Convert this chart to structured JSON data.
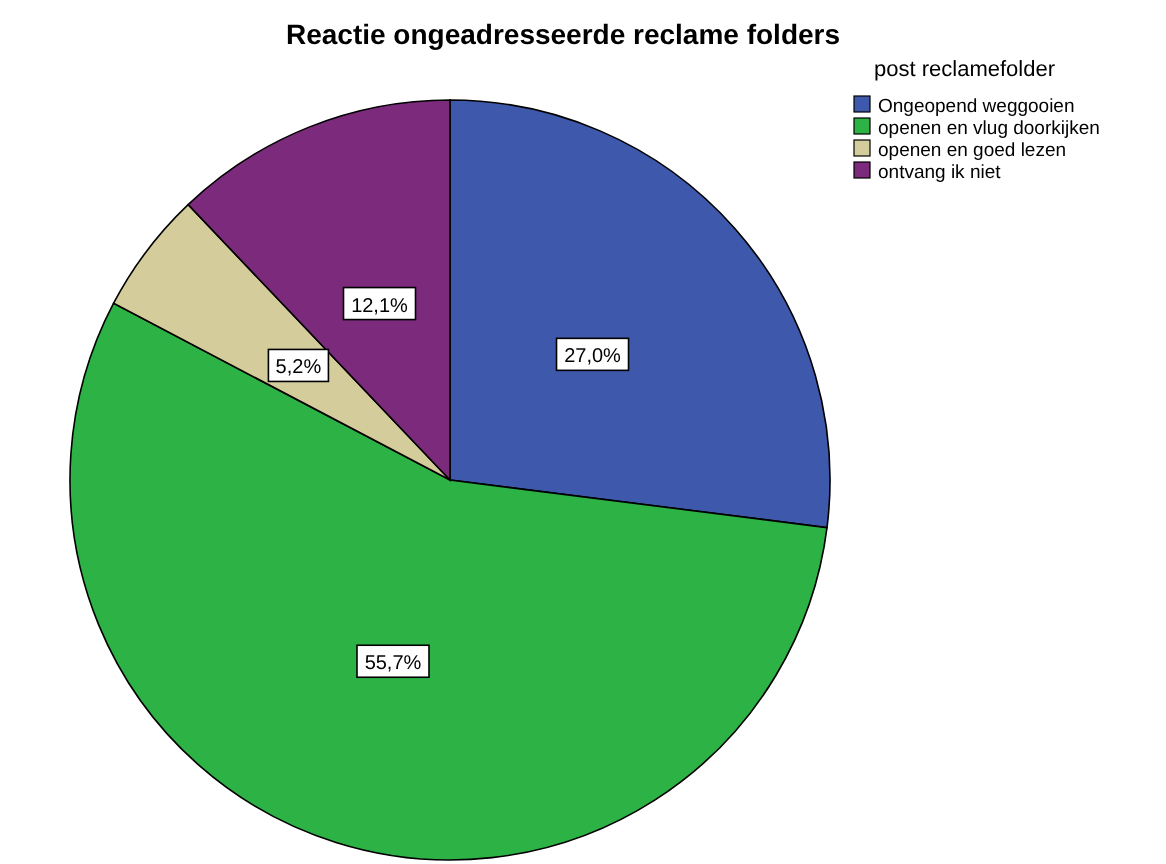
{
  "chart_data": {
    "type": "pie",
    "title": "Reactie ongeadresseerde reclame folders",
    "legend_title": "post reclamefolder",
    "categories": [
      "Ongeopend weggooien",
      "openen en vlug doorkijken",
      "openen en goed lezen",
      "ontvang ik niet"
    ],
    "values": [
      27.0,
      55.7,
      5.2,
      12.1
    ],
    "colors": [
      "#3e58ac",
      "#2db245",
      "#d4cc9a",
      "#7b2a7c"
    ],
    "value_labels": [
      "27,0%",
      "55,7%",
      "5,2%",
      "12,1%"
    ],
    "legend": "top right"
  }
}
